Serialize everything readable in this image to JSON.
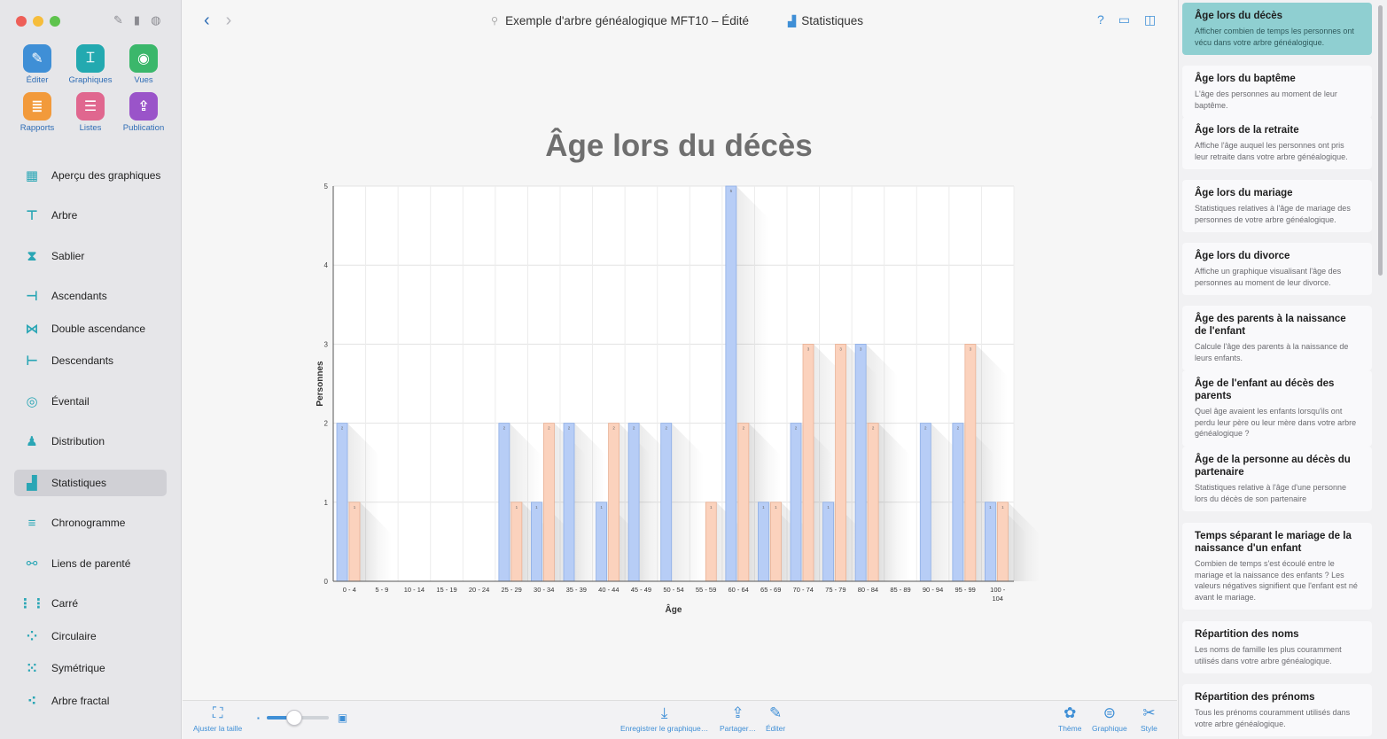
{
  "window": {
    "title": "Exemple d'arbre généalogique MFT10 – Édité",
    "view": "Statistiques"
  },
  "colors": {
    "accent": "#3f8fd6",
    "teal": "#2aa6b5",
    "selected_card": "#8fcfd1",
    "series_a": "#b7cdf6",
    "series_b": "#fbd2bd"
  },
  "sidebar": {
    "tools": [
      {
        "label": "Éditer",
        "icon": "pencil-icon",
        "color": "#3f8fd6"
      },
      {
        "label": "Graphiques",
        "icon": "chart-tree-icon",
        "color": "#23a9b0"
      },
      {
        "label": "Vues",
        "icon": "eye-icon",
        "color": "#3bb76b"
      },
      {
        "label": "Rapports",
        "icon": "report-icon",
        "color": "#f29a3b"
      },
      {
        "label": "Listes",
        "icon": "list-icon",
        "color": "#e0678f"
      },
      {
        "label": "Publication",
        "icon": "upload-icon",
        "color": "#9a54c9"
      }
    ],
    "items": [
      {
        "label": "Aperçu des graphiques",
        "icon": "grid-icon"
      },
      {
        "label": "Arbre",
        "icon": "tree-icon"
      },
      {
        "label": "Sablier",
        "icon": "hourglass-icon"
      },
      {
        "label": "Ascendants",
        "icon": "ancestors-icon"
      },
      {
        "label": "Double ascendance",
        "icon": "double-ancestry-icon"
      },
      {
        "label": "Descendants",
        "icon": "descendants-icon"
      },
      {
        "label": "Éventail",
        "icon": "fan-icon"
      },
      {
        "label": "Distribution",
        "icon": "distribution-icon"
      },
      {
        "label": "Statistiques",
        "icon": "statistics-icon",
        "active": true
      },
      {
        "label": "Chronogramme",
        "icon": "timeline-icon"
      },
      {
        "label": "Liens de parenté",
        "icon": "relationship-icon"
      },
      {
        "label": "Carré",
        "icon": "square-icon"
      },
      {
        "label": "Circulaire",
        "icon": "circular-icon"
      },
      {
        "label": "Symétrique",
        "icon": "symmetric-icon"
      },
      {
        "label": "Arbre fractal",
        "icon": "fractal-icon"
      }
    ]
  },
  "bottombar": {
    "fit": "Ajuster la taille",
    "save": "Enregistrer le graphique…",
    "share": "Partager…",
    "edit": "Éditer",
    "theme": "Thème",
    "graph": "Graphique",
    "style": "Style",
    "zoom_level": 0.45
  },
  "chart_data": {
    "type": "bar",
    "title": "Âge lors du décès",
    "xlabel": "Âge",
    "ylabel": "Personnes",
    "ylim": [
      0,
      5
    ],
    "yticks": [
      0,
      1,
      2,
      3,
      4,
      5
    ],
    "grid": true,
    "categories": [
      "0 - 4",
      "5 - 9",
      "10 - 14",
      "15 - 19",
      "20 - 24",
      "25 - 29",
      "30 - 34",
      "35 - 39",
      "40 - 44",
      "45 - 49",
      "50 - 54",
      "55 - 59",
      "60 - 64",
      "65 - 69",
      "70 - 74",
      "75 - 79",
      "80 - 84",
      "85 - 89",
      "90 - 94",
      "95 - 99",
      "100 - 104"
    ],
    "series": [
      {
        "values": [
          2,
          0,
          0,
          0,
          0,
          2,
          1,
          2,
          1,
          2,
          2,
          0,
          5,
          1,
          2,
          1,
          3,
          0,
          2,
          2,
          1
        ]
      },
      {
        "values": [
          1,
          0,
          0,
          0,
          0,
          1,
          2,
          0,
          2,
          0,
          0,
          1,
          2,
          1,
          3,
          3,
          2,
          0,
          0,
          3,
          1
        ]
      }
    ]
  },
  "panel": {
    "cards": [
      {
        "title": "Âge lors du décès",
        "desc": "Afficher combien de temps les personnes ont vécu dans votre arbre généalogique.",
        "active": true
      },
      {
        "title": "Âge lors du baptême",
        "desc": "L'âge des personnes au moment de leur baptême."
      },
      {
        "title": "Âge lors de la retraite",
        "desc": "Affiche l'âge auquel les personnes ont pris leur retraite dans votre arbre généalogique."
      },
      {
        "title": "Âge lors du mariage",
        "desc": "Statistiques relatives à l'âge de mariage des personnes de votre arbre généalogique."
      },
      {
        "title": "Âge lors du divorce",
        "desc": "Affiche un graphique visualisant l'âge des personnes au moment de leur divorce."
      },
      {
        "title": "Âge des parents à la naissance de l'enfant",
        "desc": "Calcule l'âge des parents à la naissance de leurs enfants."
      },
      {
        "title": "Âge de l'enfant au décès des parents",
        "desc": "Quel âge avaient les enfants lorsqu'ils ont perdu leur père ou leur mère dans votre arbre généalogique ?"
      },
      {
        "title": "Âge de la personne au décès du partenaire",
        "desc": "Statistiques relative à l'âge d'une personne lors du décès de son partenaire"
      },
      {
        "title": "Temps séparant le mariage de la naissance d'un enfant",
        "desc": "Combien de temps s'est écoulé entre le mariage et la naissance des enfants ? Les valeurs négatives signifient que l'enfant est né avant le mariage."
      },
      {
        "title": "Répartition des noms",
        "desc": "Les noms de famille les plus couramment utilisés dans votre arbre généalogique."
      },
      {
        "title": "Répartition des prénoms",
        "desc": "Tous les prénoms couramment utilisés dans votre arbre généalogique."
      }
    ]
  }
}
